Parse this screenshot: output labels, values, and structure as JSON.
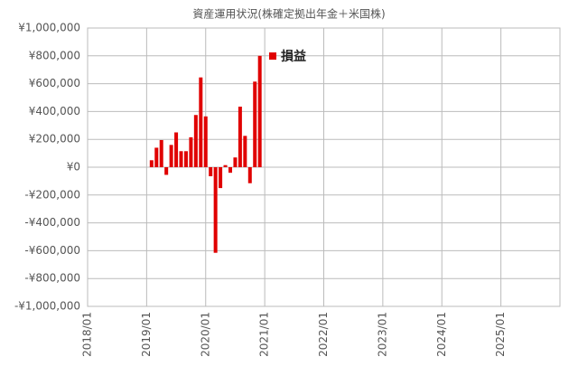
{
  "chart_data": {
    "type": "bar",
    "title": "資産運用状況(株確定拠出年金＋米国株)",
    "x": [
      "2019/02",
      "2019/03",
      "2019/04",
      "2019/05",
      "2019/06",
      "2019/07",
      "2019/08",
      "2019/09",
      "2019/10",
      "2019/11",
      "2019/12",
      "2020/01",
      "2020/02",
      "2020/03",
      "2020/04",
      "2020/05",
      "2020/06",
      "2020/07",
      "2020/08",
      "2020/09",
      "2020/10",
      "2020/11",
      "2020/12"
    ],
    "series": [
      {
        "name": "損益",
        "color": "#e00000",
        "values": [
          50000,
          140000,
          195000,
          -55000,
          160000,
          250000,
          115000,
          115000,
          215000,
          375000,
          645000,
          365000,
          -65000,
          -615000,
          -150000,
          15000,
          -40000,
          70000,
          435000,
          225000,
          -115000,
          615000,
          800000
        ]
      }
    ],
    "xlim": [
      "2018/01",
      "2026/01"
    ],
    "xticks": [
      "2018/01",
      "2019/01",
      "2020/01",
      "2021/01",
      "2022/01",
      "2023/01",
      "2024/01",
      "2025/01"
    ],
    "ylim": [
      -1000000,
      1000000
    ],
    "yticks": [
      {
        "value": -1000000,
        "label": "-¥1,000,000"
      },
      {
        "value": -800000,
        "label": "-¥800,000"
      },
      {
        "value": -600000,
        "label": "-¥600,000"
      },
      {
        "value": -400000,
        "label": "-¥400,000"
      },
      {
        "value": -200000,
        "label": "-¥200,000"
      },
      {
        "value": 0,
        "label": "¥0"
      },
      {
        "value": 200000,
        "label": "¥200,000"
      },
      {
        "value": 400000,
        "label": "¥400,000"
      },
      {
        "value": 600000,
        "label": "¥600,000"
      },
      {
        "value": 800000,
        "label": "¥800,000"
      },
      {
        "value": 1000000,
        "label": "¥1,000,000"
      }
    ],
    "grid": true,
    "legend": "top"
  }
}
